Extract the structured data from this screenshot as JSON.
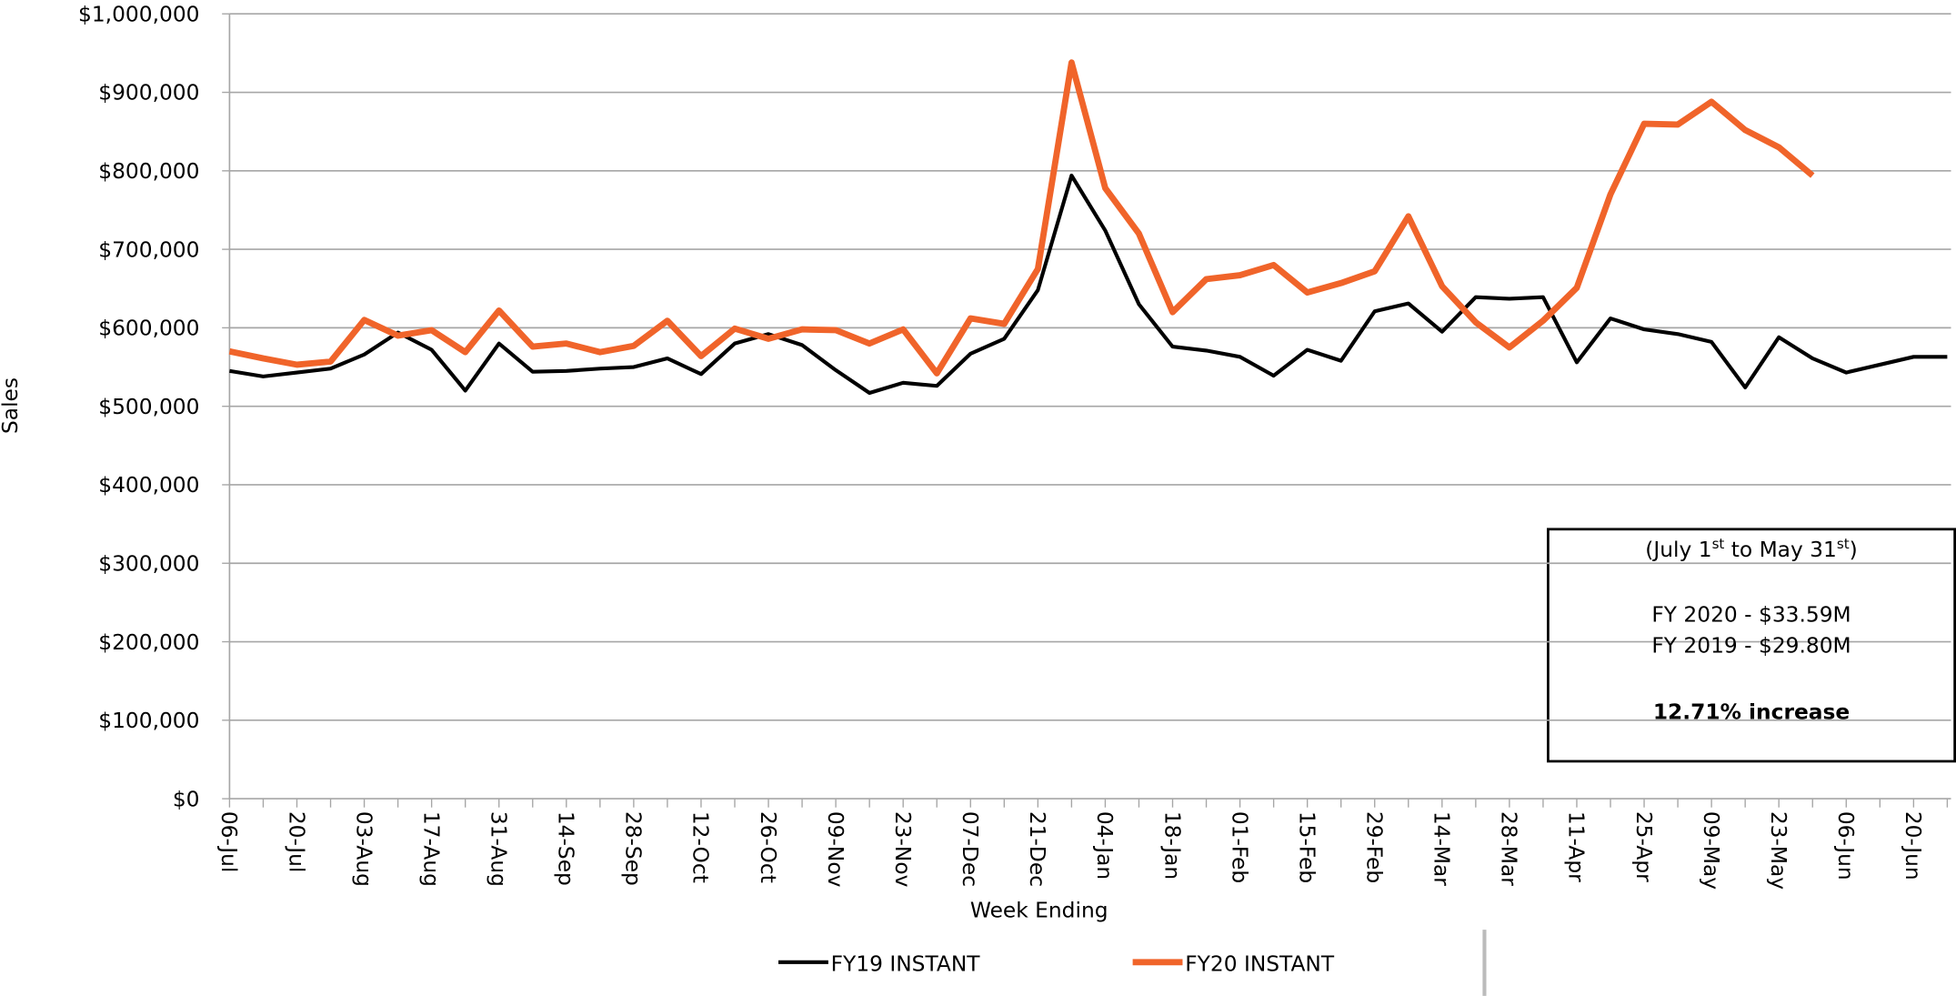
{
  "chart_data": {
    "type": "line",
    "y_label": "Sales",
    "x_label": "Week Ending",
    "categories": [
      "06-Jul",
      null,
      "20-Jul",
      null,
      "03-Aug",
      null,
      "17-Aug",
      null,
      "31-Aug",
      null,
      "14-Sep",
      null,
      "28-Sep",
      null,
      "12-Oct",
      null,
      "26-Oct",
      null,
      "09-Nov",
      null,
      "23-Nov",
      null,
      "07-Dec",
      null,
      "21-Dec",
      null,
      "04-Jan",
      null,
      "18-Jan",
      null,
      "01-Feb",
      null,
      "15-Feb",
      null,
      "29-Feb",
      null,
      "14-Mar",
      null,
      "28-Mar",
      null,
      "11-Apr",
      null,
      "25-Apr",
      null,
      "09-May",
      null,
      "23-May",
      null,
      "06-Jun",
      null,
      "20-Jun",
      null
    ],
    "series": [
      {
        "name": "FY19 INSTANT",
        "color": "#000000",
        "width": 3,
        "values": [
          545000,
          538000,
          543000,
          548000,
          566000,
          594000,
          572000,
          520000,
          580000,
          544000,
          545000,
          548000,
          550000,
          561000,
          541000,
          580000,
          592000,
          578000,
          546000,
          517000,
          530000,
          526000,
          567000,
          586000,
          648000,
          794000,
          724000,
          630000,
          576000,
          571000,
          563000,
          539000,
          572000,
          558000,
          621000,
          631000,
          595000,
          639000,
          637000,
          639000,
          556000,
          612000,
          598000,
          592000,
          582000,
          524000,
          588000,
          561000,
          543000,
          553000,
          563000,
          563000
        ]
      },
      {
        "name": "FY20 INSTANT",
        "color": "#f0642a",
        "width": 5,
        "values": [
          570000,
          561000,
          553000,
          557000,
          610000,
          590000,
          597000,
          569000,
          622000,
          576000,
          580000,
          569000,
          577000,
          609000,
          564000,
          599000,
          586000,
          598000,
          597000,
          580000,
          598000,
          542000,
          612000,
          605000,
          675000,
          938000,
          778000,
          720000,
          620000,
          662000,
          667000,
          680000,
          645000,
          657000,
          672000,
          742000,
          653000,
          607000,
          575000,
          609000,
          651000,
          770000,
          860000,
          859000,
          888000,
          852000,
          830000,
          794000,
          null,
          null,
          null,
          null
        ]
      }
    ],
    "ylim": [
      0,
      1000000
    ],
    "yticks": [
      {
        "value": 0,
        "label": "$0"
      },
      {
        "value": 100000,
        "label": "$100,000"
      },
      {
        "value": 200000,
        "label": "$200,000"
      },
      {
        "value": 300000,
        "label": "$300,000"
      },
      {
        "value": 400000,
        "label": "$400,000"
      },
      {
        "value": 500000,
        "label": "$500,000"
      },
      {
        "value": 600000,
        "label": "$600,000"
      },
      {
        "value": 700000,
        "label": "$700,000"
      },
      {
        "value": 800000,
        "label": "$800,000"
      },
      {
        "value": 900000,
        "label": "$900,000"
      },
      {
        "value": 1000000,
        "label": "$1,000,000"
      }
    ],
    "grid": true,
    "legend": "bottom",
    "annotation": {
      "period": [
        "(July 1",
        "st",
        " to May 31",
        "st",
        ")"
      ],
      "fy2020": "FY 2020 - $33.59M",
      "fy2020_color": "#f0642a",
      "fy2019": "FY 2019 - $29.80M",
      "increase": "12.71% increase",
      "increase_color": "#00b050"
    }
  }
}
